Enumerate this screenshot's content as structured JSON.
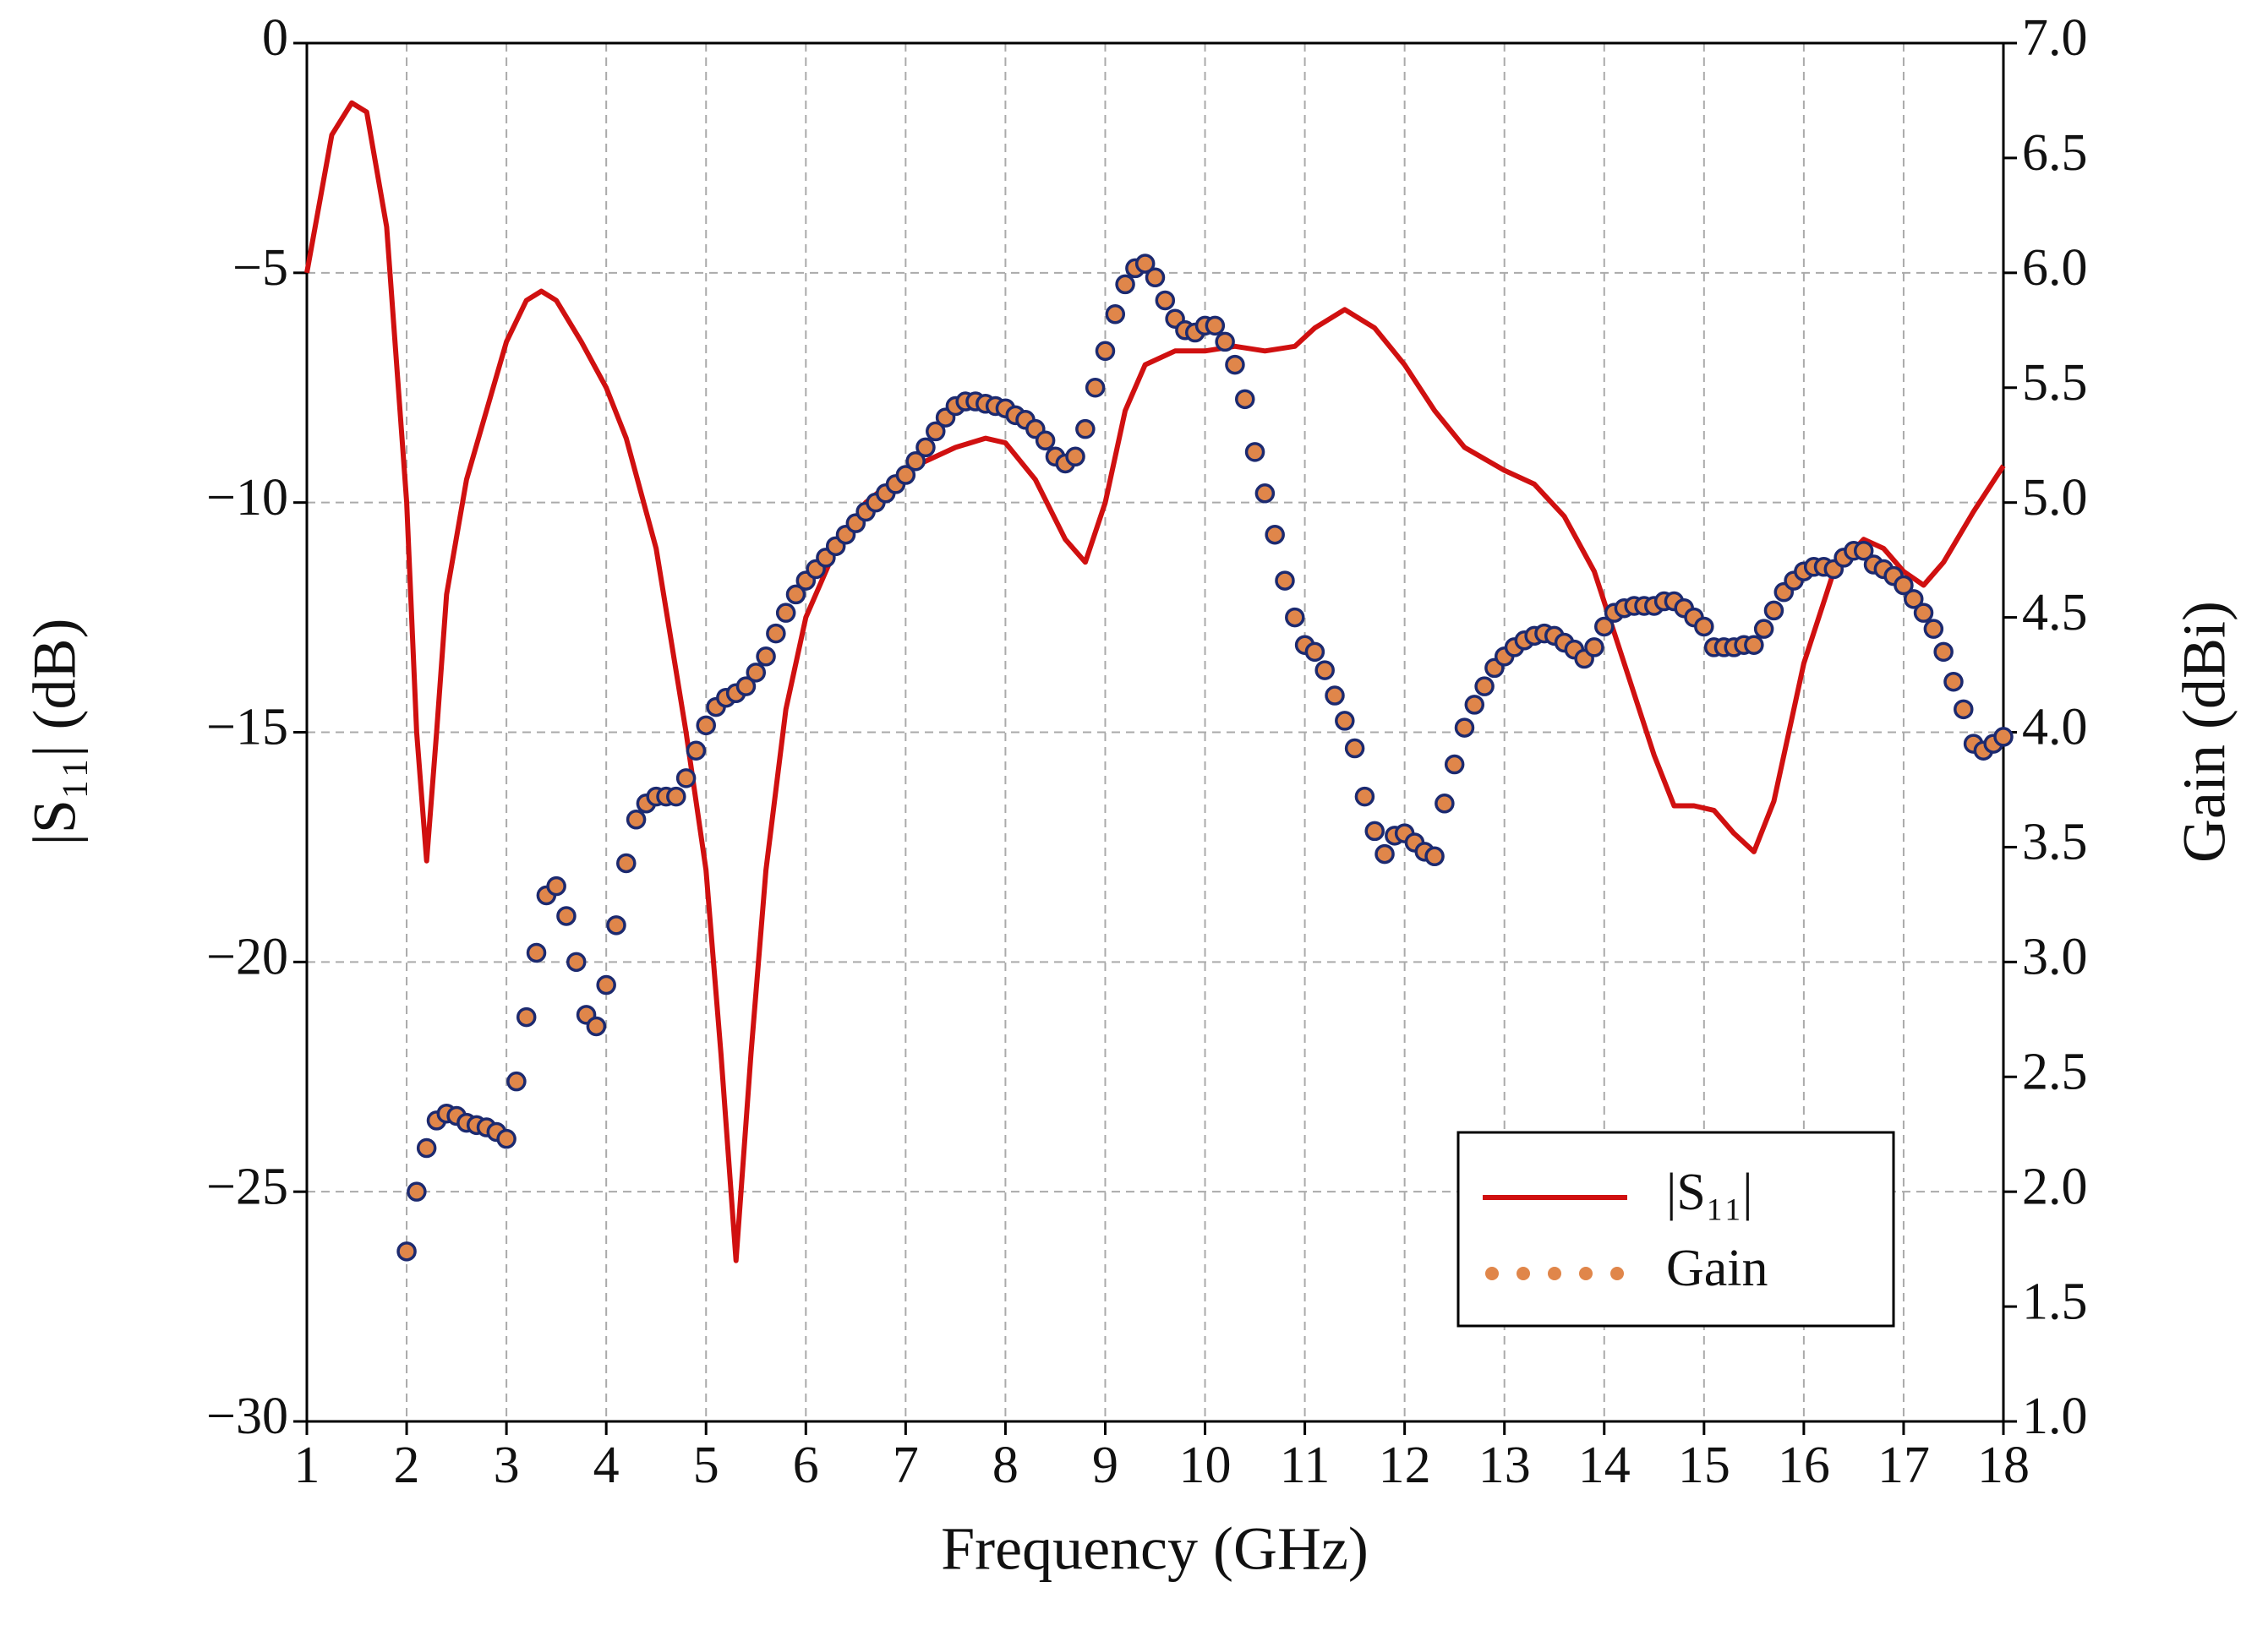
{
  "chart_data": {
    "type": "line-scatter",
    "xlabel": "Frequency (GHz)",
    "ylabel": "|S₁₁| (dB)",
    "y2label": "Gain (dBi)",
    "xlim": [
      1,
      18
    ],
    "xticks": [
      1,
      2,
      3,
      4,
      5,
      6,
      7,
      8,
      9,
      10,
      11,
      12,
      13,
      14,
      15,
      16,
      17,
      18
    ],
    "ylim": [
      -30,
      0
    ],
    "yticks": [
      0,
      {
        "value": -5,
        "label": "−5"
      },
      {
        "value": -10,
        "label": "−10"
      },
      {
        "value": -15,
        "label": "−15"
      },
      {
        "value": -20,
        "label": "−20"
      },
      {
        "value": -25,
        "label": "−25"
      },
      {
        "value": -30,
        "label": "−30"
      }
    ],
    "y2lim": [
      1,
      7
    ],
    "y2ticks": [
      {
        "value": 1,
        "label": "1.0"
      },
      1.5,
      {
        "value": 2,
        "label": "2.0"
      },
      2.5,
      {
        "value": 3,
        "label": "3.0"
      },
      3.5,
      {
        "value": 4,
        "label": "4.0"
      },
      4.5,
      {
        "value": 5,
        "label": "5.0"
      },
      5.5,
      {
        "value": 6,
        "label": "6.0"
      },
      6.5,
      {
        "value": 7,
        "label": "7.0"
      }
    ],
    "grid": true,
    "legend": "lower right",
    "series": [
      {
        "name": "|S₁₁|",
        "kind": "line",
        "color": "#d01010",
        "x": [
          1,
          1.25,
          1.45,
          1.6,
          1.8,
          2.0,
          2.1,
          2.2,
          2.3,
          2.4,
          2.6,
          2.8,
          3.0,
          3.2,
          3.35,
          3.5,
          3.75,
          4.0,
          4.2,
          4.5,
          4.8,
          5.0,
          5.15,
          5.3,
          5.45,
          5.6,
          5.8,
          6.0,
          6.3,
          6.6,
          7.0,
          7.5,
          7.8,
          8.0,
          8.3,
          8.6,
          8.8,
          9.0,
          9.2,
          9.4,
          9.7,
          10.0,
          10.3,
          10.6,
          10.9,
          11.1,
          11.4,
          11.7,
          12.0,
          12.3,
          12.6,
          13.0,
          13.3,
          13.6,
          13.9,
          14.2,
          14.5,
          14.7,
          14.9,
          15.1,
          15.3,
          15.5,
          15.7,
          16.0,
          16.3,
          16.6,
          16.8,
          17.0,
          17.2,
          17.4,
          17.7,
          18.0
        ],
        "values": [
          -5,
          -2,
          -1.3,
          -1.5,
          -4,
          -10,
          -15,
          -17.8,
          -15,
          -12,
          -9.5,
          -8,
          -6.5,
          -5.6,
          -5.4,
          -5.6,
          -6.5,
          -7.5,
          -8.6,
          -11,
          -15,
          -18,
          -22,
          -26.5,
          -22,
          -18,
          -14.5,
          -12.5,
          -11,
          -10,
          -9.3,
          -8.8,
          -8.6,
          -8.7,
          -9.5,
          -10.8,
          -11.3,
          -10,
          -8,
          -7,
          -6.7,
          -6.7,
          -6.6,
          -6.7,
          -6.6,
          -6.2,
          -5.8,
          -6.2,
          -7,
          -8,
          -8.8,
          -9.3,
          -9.6,
          -10.3,
          -11.5,
          -13.5,
          -15.5,
          -16.6,
          -16.6,
          -16.7,
          -17.2,
          -17.6,
          -16.5,
          -13.5,
          -11.5,
          -10.8,
          -11,
          -11.5,
          -11.8,
          -11.3,
          -10.2,
          -9.2
        ]
      },
      {
        "name": "Gain",
        "kind": "scatter",
        "axis": "y2",
        "color": "#e0864a",
        "edgecolor": "#1c2a70",
        "x": [
          2.0,
          2.1,
          2.2,
          2.3,
          2.4,
          2.5,
          2.6,
          2.7,
          2.8,
          2.9,
          3.0,
          3.1,
          3.2,
          3.3,
          3.4,
          3.5,
          3.6,
          3.7,
          3.8,
          3.9,
          4.0,
          4.1,
          4.2,
          4.3,
          4.4,
          4.5,
          4.6,
          4.7,
          4.8,
          4.9,
          5.0,
          5.1,
          5.2,
          5.3,
          5.4,
          5.5,
          5.6,
          5.7,
          5.8,
          5.9,
          6.0,
          6.1,
          6.2,
          6.3,
          6.4,
          6.5,
          6.6,
          6.7,
          6.8,
          6.9,
          7.0,
          7.1,
          7.2,
          7.3,
          7.4,
          7.5,
          7.6,
          7.7,
          7.8,
          7.9,
          8.0,
          8.1,
          8.2,
          8.3,
          8.4,
          8.5,
          8.6,
          8.7,
          8.8,
          8.9,
          9.0,
          9.1,
          9.2,
          9.3,
          9.4,
          9.5,
          9.6,
          9.7,
          9.8,
          9.9,
          10.0,
          10.1,
          10.2,
          10.3,
          10.4,
          10.5,
          10.6,
          10.7,
          10.8,
          10.9,
          11.0,
          11.1,
          11.2,
          11.3,
          11.4,
          11.5,
          11.6,
          11.7,
          11.8,
          11.9,
          12.0,
          12.1,
          12.2,
          12.3,
          12.4,
          12.5,
          12.6,
          12.7,
          12.8,
          12.9,
          13.0,
          13.1,
          13.2,
          13.3,
          13.4,
          13.5,
          13.6,
          13.7,
          13.8,
          13.9,
          14.0,
          14.1,
          14.2,
          14.3,
          14.4,
          14.5,
          14.6,
          14.7,
          14.8,
          14.9,
          15.0,
          15.1,
          15.2,
          15.3,
          15.4,
          15.5,
          15.6,
          15.7,
          15.8,
          15.9,
          16.0,
          16.1,
          16.2,
          16.3,
          16.4,
          16.5,
          16.6,
          16.7,
          16.8,
          16.9,
          17.0,
          17.1,
          17.2,
          17.3,
          17.4,
          17.5,
          17.6,
          17.7,
          17.8,
          17.9,
          18.0
        ],
        "values": [
          1.74,
          2.0,
          2.19,
          2.31,
          2.34,
          2.33,
          2.3,
          2.29,
          2.28,
          2.26,
          2.23,
          2.48,
          2.76,
          3.04,
          3.29,
          3.33,
          3.2,
          3.0,
          2.77,
          2.72,
          2.9,
          3.16,
          3.43,
          3.62,
          3.69,
          3.72,
          3.72,
          3.72,
          3.8,
          3.92,
          4.03,
          4.11,
          4.15,
          4.17,
          4.2,
          4.26,
          4.33,
          4.43,
          4.52,
          4.6,
          4.66,
          4.71,
          4.76,
          4.81,
          4.86,
          4.91,
          4.96,
          5.0,
          5.04,
          5.08,
          5.12,
          5.18,
          5.24,
          5.31,
          5.37,
          5.42,
          5.44,
          5.44,
          5.43,
          5.42,
          5.41,
          5.38,
          5.36,
          5.32,
          5.27,
          5.2,
          5.17,
          5.2,
          5.32,
          5.5,
          5.66,
          5.82,
          5.95,
          6.02,
          6.04,
          5.98,
          5.88,
          5.8,
          5.75,
          5.74,
          5.77,
          5.77,
          5.7,
          5.6,
          5.45,
          5.22,
          5.04,
          4.86,
          4.66,
          4.5,
          4.38,
          4.35,
          4.27,
          4.16,
          4.05,
          3.93,
          3.72,
          3.57,
          3.47,
          3.55,
          3.56,
          3.52,
          3.48,
          3.46,
          3.69,
          3.86,
          4.02,
          4.12,
          4.2,
          4.28,
          4.33,
          4.37,
          4.4,
          4.42,
          4.43,
          4.42,
          4.39,
          4.36,
          4.32,
          4.37,
          4.46,
          4.52,
          4.54,
          4.55,
          4.55,
          4.55,
          4.57,
          4.57,
          4.54,
          4.5,
          4.46,
          4.37,
          4.37,
          4.37,
          4.38,
          4.38,
          4.45,
          4.53,
          4.61,
          4.66,
          4.7,
          4.72,
          4.72,
          4.71,
          4.76,
          4.79,
          4.79,
          4.73,
          4.71,
          4.68,
          4.64,
          4.58,
          4.52,
          4.45,
          4.35,
          4.22,
          4.1,
          3.95,
          3.92,
          3.95,
          3.98
        ]
      }
    ]
  }
}
